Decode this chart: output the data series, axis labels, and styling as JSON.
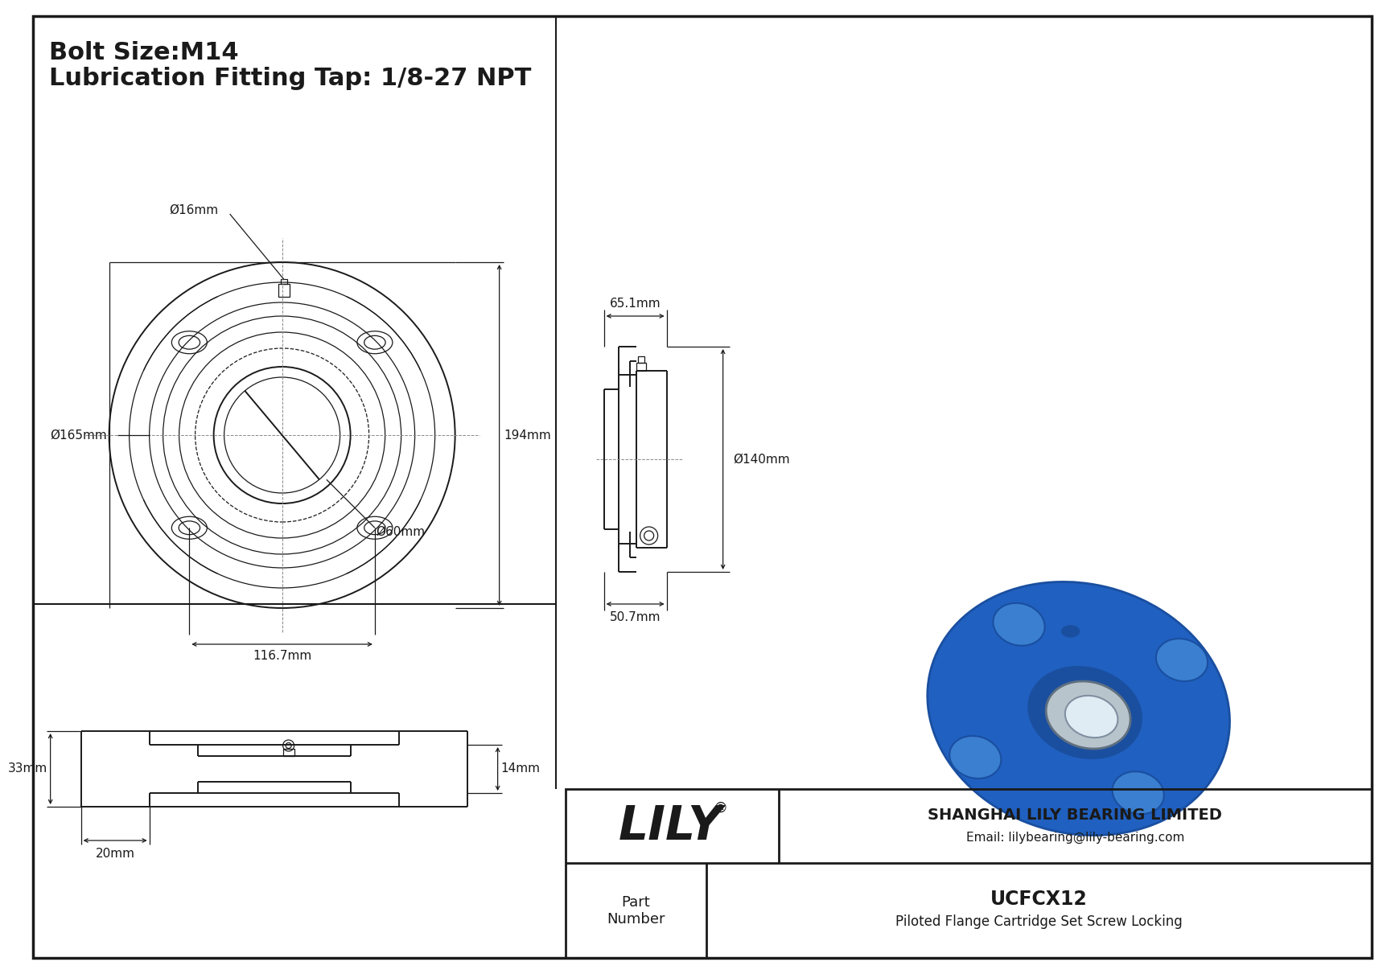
{
  "bg_color": "#ffffff",
  "line_color": "#1a1a1a",
  "dim_color": "#1a1a1a",
  "cl_color": "#888888",
  "title_line1": "Bolt Size:M14",
  "title_line2": "Lubrication Fitting Tap: 1/8-27 NPT",
  "company": "SHANGHAI LILY BEARING LIMITED",
  "email": "Email: lilybearing@lily-bearing.com",
  "part_label": "Part\nNumber",
  "part_number": "UCFCX12",
  "part_desc": "Piloted Flange Cartridge Set Screw Locking",
  "lily_text": "LILY",
  "dim_d16": "Ø16mm",
  "dim_d165": "Ø165mm",
  "dim_d60": "Ø60mm",
  "dim_116": "116.7mm",
  "dim_194": "194mm",
  "dim_65": "65.1mm",
  "dim_140": "Ø140mm",
  "dim_50": "50.7mm",
  "dim_33": "33mm",
  "dim_14": "14mm",
  "dim_20": "20mm"
}
